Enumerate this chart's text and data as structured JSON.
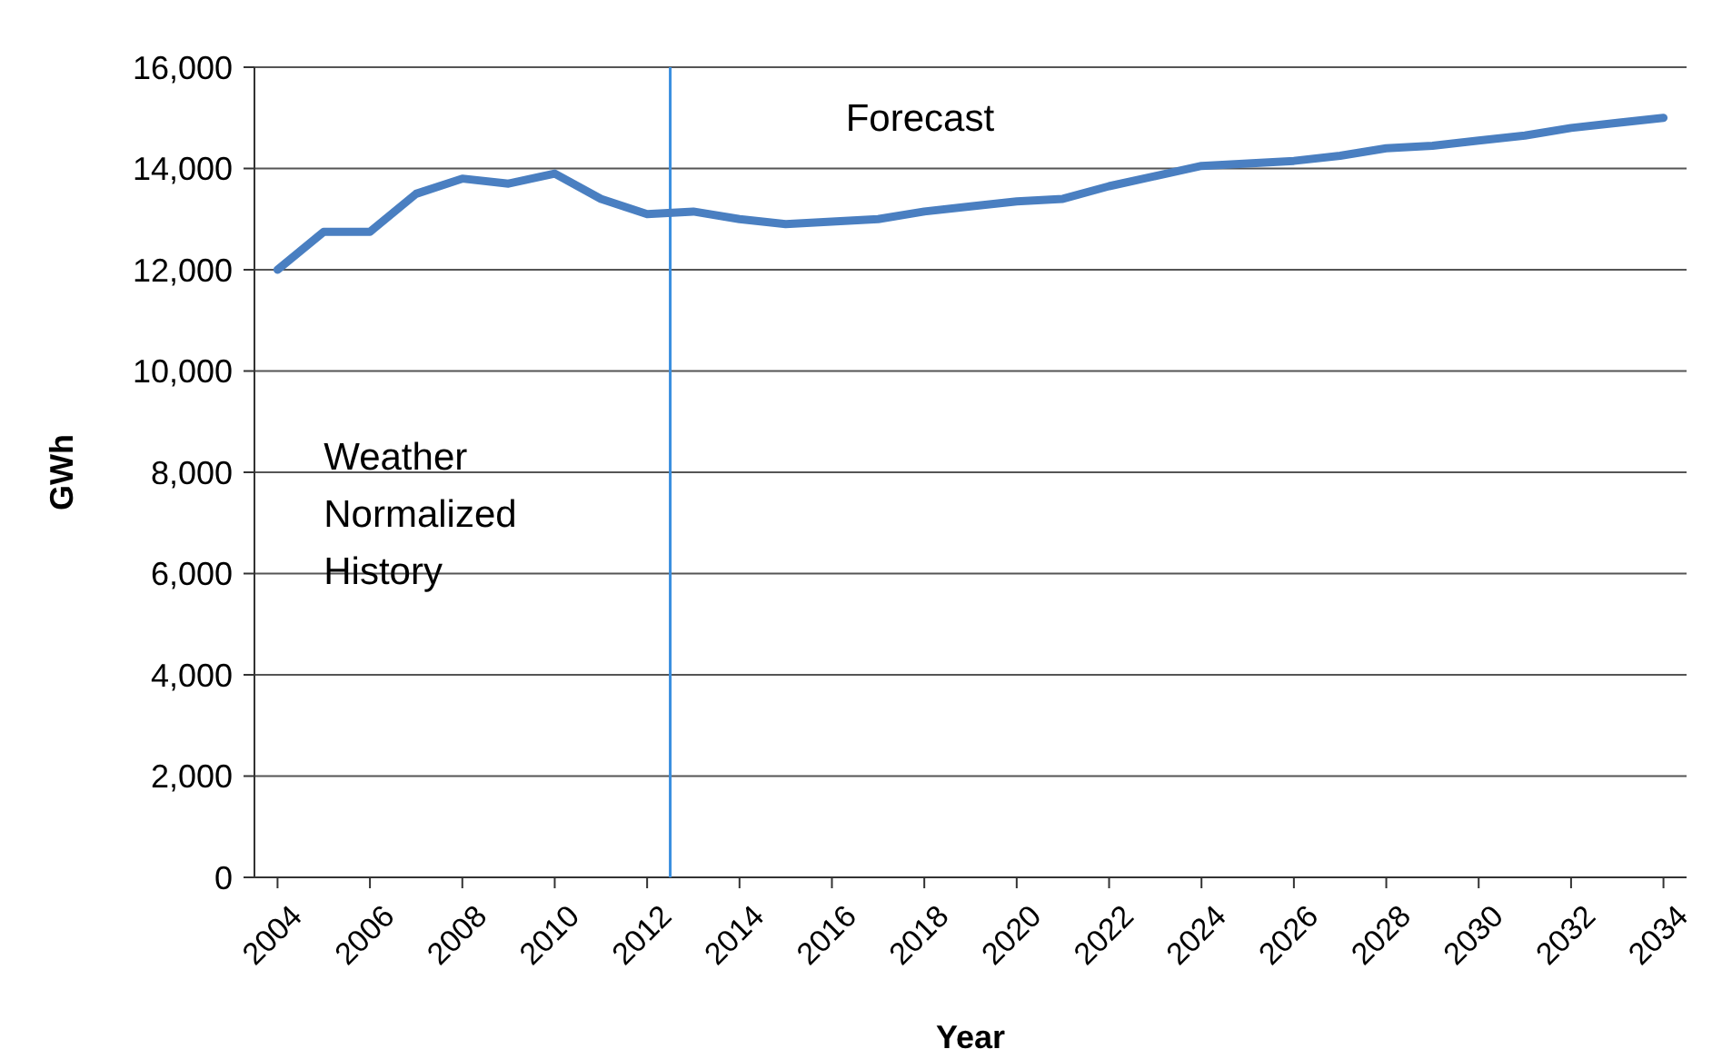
{
  "chart_data": {
    "type": "line",
    "xlabel": "Year",
    "ylabel": "GWh",
    "x": [
      2004,
      2005,
      2006,
      2007,
      2008,
      2009,
      2010,
      2011,
      2012,
      2013,
      2014,
      2015,
      2016,
      2017,
      2018,
      2019,
      2020,
      2021,
      2022,
      2023,
      2024,
      2025,
      2026,
      2027,
      2028,
      2029,
      2030,
      2031,
      2032,
      2033,
      2034
    ],
    "series": [
      {
        "color": "#4a7fc1",
        "values": [
          12000,
          12750,
          12750,
          13500,
          13800,
          13700,
          13900,
          13400,
          13100,
          13150,
          13000,
          12900,
          12950,
          13000,
          13150,
          13250,
          13350,
          13400,
          13650,
          13850,
          14050,
          14100,
          14150,
          14250,
          14400,
          14450,
          14550,
          14650,
          14800,
          14900,
          15000
        ]
      }
    ],
    "xlim": [
      2003.5,
      2034.5
    ],
    "xticks": [
      2004,
      2006,
      2008,
      2010,
      2012,
      2014,
      2016,
      2018,
      2020,
      2022,
      2024,
      2026,
      2028,
      2030,
      2032,
      2034
    ],
    "ylim": [
      0,
      16000
    ],
    "yticks": [
      {
        "value": 0,
        "label": "0"
      },
      {
        "value": 2000,
        "label": "2,000"
      },
      {
        "value": 4000,
        "label": "4,000"
      },
      {
        "value": 6000,
        "label": "6,000"
      },
      {
        "value": 8000,
        "label": "8,000"
      },
      {
        "value": 10000,
        "label": "10,000"
      },
      {
        "value": 12000,
        "label": "12,000"
      },
      {
        "value": 14000,
        "label": "14,000"
      },
      {
        "value": 16000,
        "label": "16,000"
      }
    ],
    "grid": "y",
    "marker": "none",
    "line_style": "solid",
    "ref_lines": [
      {
        "axis": "x",
        "value": 2012.5,
        "color": "#3b8fe0"
      }
    ],
    "annotations": [
      "Forecast",
      "Weather\nNormalized\nHistory"
    ]
  }
}
